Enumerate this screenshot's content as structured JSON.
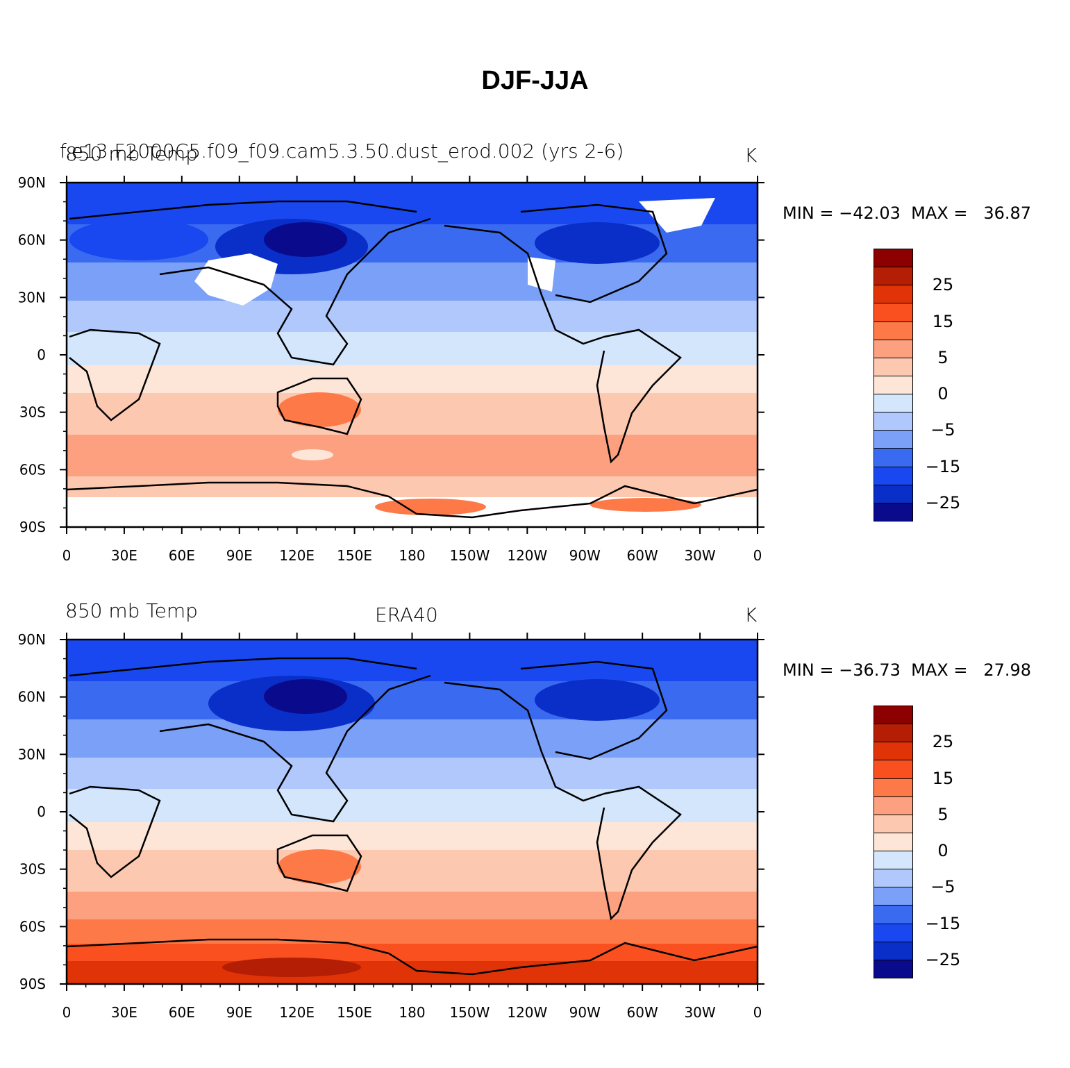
{
  "figure": {
    "title": "DJF-JJA"
  },
  "colors": {
    "palette": [
      "#0a0a8c",
      "#0a2ec8",
      "#1a48f0",
      "#3a6af0",
      "#7aa0f8",
      "#b0c8fc",
      "#d4e6fc",
      "#fde6d8",
      "#fdc8b0",
      "#fca080",
      "#fd7a48",
      "#fa5020",
      "#e03408",
      "#b41e04",
      "#8c0000"
    ],
    "missing": "#ffffff",
    "coastline": "#000000"
  },
  "legend": {
    "labels": [
      "25",
      "15",
      "5",
      "0",
      "-5",
      "-15",
      "-25"
    ]
  },
  "axes": {
    "lat_ticks": [
      "90N",
      "60N",
      "30N",
      "0",
      "30S",
      "60S",
      "90S"
    ],
    "lon_ticks": [
      "0",
      "30E",
      "60E",
      "90E",
      "120E",
      "150E",
      "180",
      "150W",
      "120W",
      "90W",
      "60W",
      "30W",
      "0"
    ]
  },
  "panels": [
    {
      "left_title": "850 mb Temp",
      "center_title": "f.e13.F2000C5.f09_f09.cam5.3.50.dust_erod.002 (yrs 2-6)",
      "right_title": "K",
      "min": "-42.03",
      "max": "36.87",
      "minmax_text": "MIN = −42.03  MAX =   36.87"
    },
    {
      "left_title": "850 mb Temp",
      "center_title": "ERA40",
      "right_title": "K",
      "min": "-36.73",
      "max": "27.98",
      "minmax_text": "MIN = −36.73  MAX =   27.98"
    }
  ]
}
